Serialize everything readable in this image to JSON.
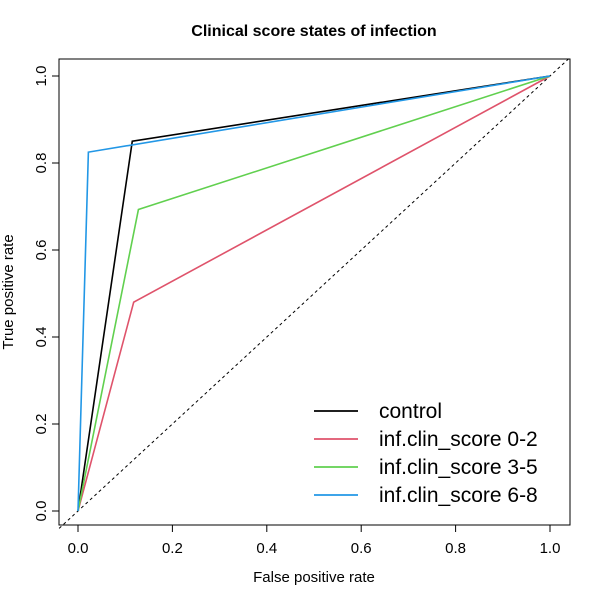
{
  "chart_data": {
    "type": "line",
    "title": "Clinical score states of infection",
    "xlabel": "False positive rate",
    "ylabel": "True positive rate",
    "xlim": [
      0.0,
      1.0
    ],
    "ylim": [
      0.0,
      1.0
    ],
    "x_ticks": [
      "0.0",
      "0.2",
      "0.4",
      "0.6",
      "0.8",
      "1.0"
    ],
    "y_ticks": [
      "0.0",
      "0.2",
      "0.4",
      "0.6",
      "0.8",
      "1.0"
    ],
    "grid": false,
    "legend_position": "bottom-right",
    "reference_line": {
      "x": [
        0.0,
        1.0
      ],
      "y": [
        0.0,
        1.0
      ],
      "style": "dashed"
    },
    "series": [
      {
        "name": "control",
        "color": "#000000",
        "x": [
          0.0,
          0.115,
          1.0
        ],
        "y": [
          0.0,
          0.85,
          1.0
        ]
      },
      {
        "name": "inf.clin_score 0-2",
        "color": "#DF536B",
        "x": [
          0.0,
          0.118,
          1.0
        ],
        "y": [
          0.0,
          0.48,
          1.0
        ]
      },
      {
        "name": "inf.clin_score 3-5",
        "color": "#61D04F",
        "x": [
          0.0,
          0.128,
          1.0
        ],
        "y": [
          0.0,
          0.693,
          1.0
        ]
      },
      {
        "name": "inf.clin_score 6-8",
        "color": "#2297E6",
        "x": [
          0.0,
          0.022,
          1.0
        ],
        "y": [
          0.0,
          0.825,
          1.0
        ]
      }
    ]
  }
}
